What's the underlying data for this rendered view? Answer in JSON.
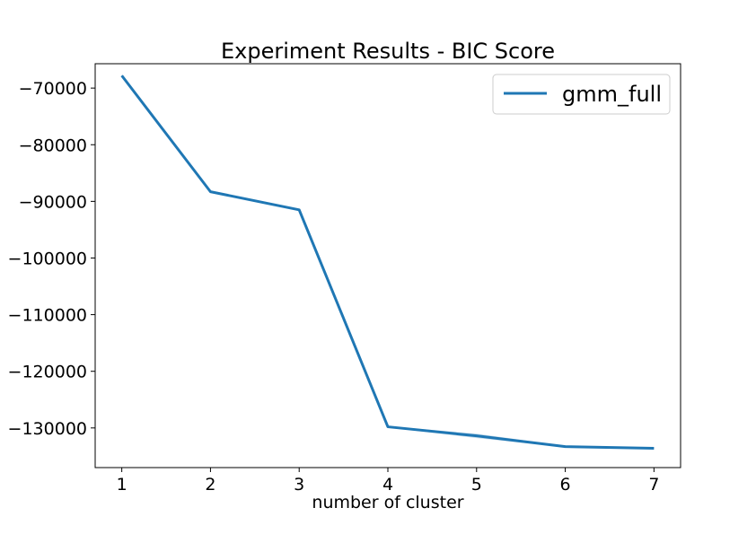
{
  "chart_data": {
    "type": "line",
    "title": "Experiment Results - BIC Score",
    "xlabel": "number of cluster",
    "ylabel": "",
    "x": [
      1,
      2,
      3,
      4,
      5,
      6,
      7
    ],
    "xticks": [
      "1",
      "2",
      "3",
      "4",
      "5",
      "6",
      "7"
    ],
    "yticks": [
      -70000,
      -80000,
      -90000,
      -100000,
      -110000,
      -120000,
      -130000
    ],
    "ytick_labels": [
      "−70000",
      "−80000",
      "−90000",
      "−100000",
      "−110000",
      "−120000",
      "−130000"
    ],
    "xlim": [
      0.7,
      7.3
    ],
    "ylim": [
      -137000,
      -65700
    ],
    "grid": false,
    "legend_position": "top-right",
    "series": [
      {
        "name": "gmm_full",
        "color": "#1f77b4",
        "values": [
          -67800,
          -88300,
          -91500,
          -129800,
          -131400,
          -133300,
          -133600
        ],
        "band_lower": [
          -67800,
          -88300,
          -91500,
          -129900,
          -131800,
          -133400,
          -133800
        ],
        "band_upper": [
          -67800,
          -88300,
          -91500,
          -129700,
          -131000,
          -133200,
          -133400
        ]
      }
    ]
  }
}
